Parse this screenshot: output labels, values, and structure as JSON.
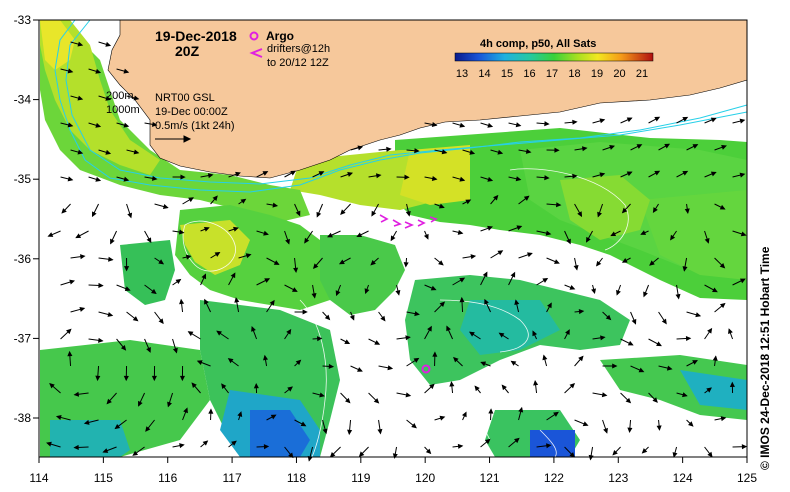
{
  "header": {
    "date": "19-Dec-2018",
    "time": "20Z"
  },
  "legend": {
    "argo_label": "Argo",
    "drifters_line1": "drifters@12h",
    "drifters_line2": "to 20/12 12Z",
    "argo_color": "#e020e0"
  },
  "notes": {
    "isobath_200": "200m",
    "isobath_1000": "1000m",
    "product": "NRT00 GSL",
    "product_time": "19-Dec 00:00Z",
    "scale_arrow": "0.5m/s (1kt 24h)"
  },
  "colorbar": {
    "title": "4h comp, p50, All Sats",
    "ticks": [
      "13",
      "14",
      "15",
      "16",
      "17",
      "18",
      "19",
      "20",
      "21"
    ]
  },
  "axes": {
    "lon_ticks": [
      "114",
      "115",
      "116",
      "117",
      "118",
      "119",
      "120",
      "121",
      "122",
      "123",
      "124",
      "125"
    ],
    "lat_ticks": [
      "-33",
      "-34",
      "-35",
      "-36",
      "-37",
      "-38"
    ]
  },
  "credit": "© IMOS 24-Dec-2018 12:51 Hobart Time",
  "colors": {
    "land": "#f6c89b",
    "isobath": "#27d0e8",
    "arrow": "#000000"
  }
}
